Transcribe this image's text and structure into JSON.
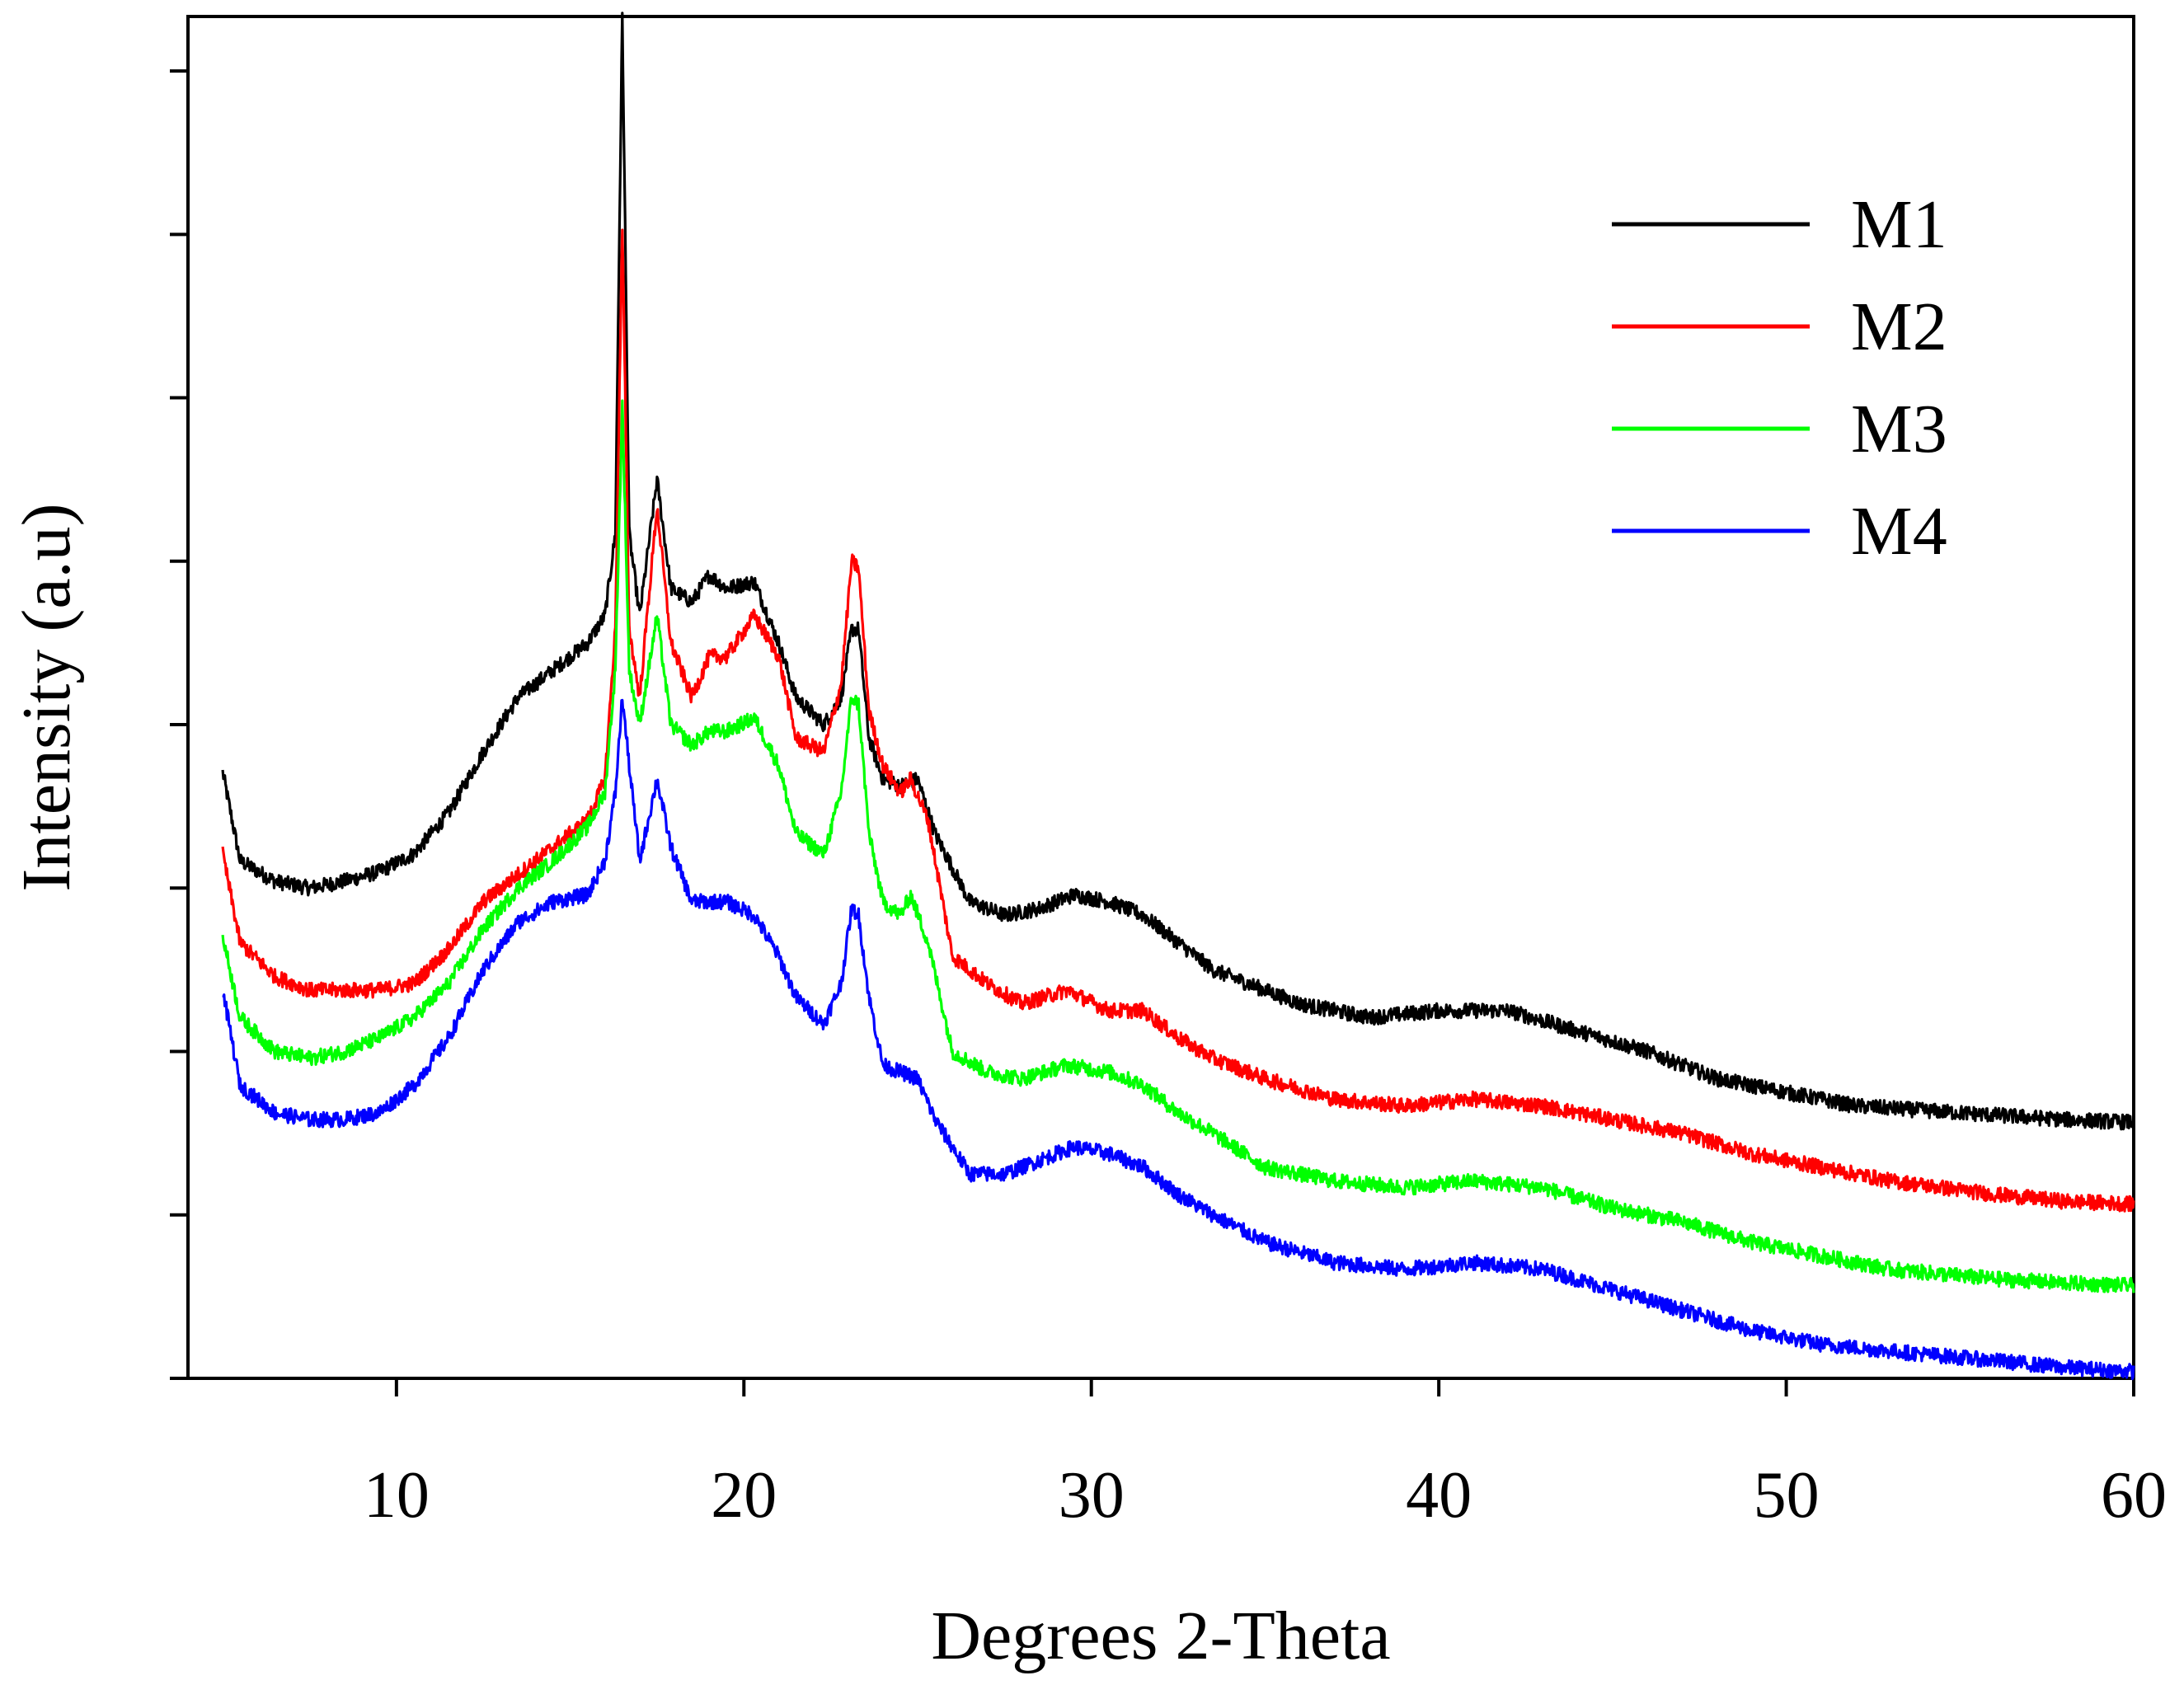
{
  "chart_data": {
    "type": "line",
    "title": "",
    "xlabel": "Degrees 2-Theta",
    "ylabel": "Intensity (a.u)",
    "xlim": [
      4,
      60
    ],
    "ylim": [
      0,
      100
    ],
    "x_ticks": [
      10,
      20,
      30,
      40,
      50,
      60
    ],
    "x_tick_labels": [
      "10",
      "20",
      "30",
      "40",
      "50",
      "60"
    ],
    "y_ticks": [
      0,
      12,
      24,
      36,
      48,
      60,
      72,
      84,
      96
    ],
    "y_tick_labels_shown": false,
    "grid": false,
    "legend_position": "top-right",
    "series": [
      {
        "name": "M1",
        "color": "#000000",
        "points": [
          [
            5,
            44.5
          ],
          [
            5.5,
            38
          ],
          [
            6.5,
            36.5
          ],
          [
            7.5,
            36
          ],
          [
            8.5,
            36.5
          ],
          [
            9.5,
            37.2
          ],
          [
            10.5,
            38.5
          ],
          [
            11.5,
            41.5
          ],
          [
            12.5,
            46
          ],
          [
            13.5,
            50
          ],
          [
            14.5,
            52
          ],
          [
            15.5,
            54
          ],
          [
            16,
            56
          ],
          [
            16.3,
            62
          ],
          [
            16.5,
            100
          ],
          [
            16.7,
            62
          ],
          [
            17,
            56
          ],
          [
            17.5,
            66
          ],
          [
            17.9,
            58
          ],
          [
            18.5,
            57
          ],
          [
            19,
            59
          ],
          [
            19.5,
            58
          ],
          [
            20.3,
            58.5
          ],
          [
            21,
            54
          ],
          [
            21.5,
            50
          ],
          [
            22.3,
            48
          ],
          [
            22.8,
            50
          ],
          [
            23.1,
            55
          ],
          [
            23.3,
            55
          ],
          [
            23.6,
            47
          ],
          [
            24,
            44
          ],
          [
            24.5,
            43.5
          ],
          [
            25,
            44
          ],
          [
            25.5,
            40
          ],
          [
            26.5,
            35
          ],
          [
            27.5,
            34
          ],
          [
            28.5,
            34.5
          ],
          [
            29.5,
            35.5
          ],
          [
            30.5,
            35
          ],
          [
            31.5,
            34
          ],
          [
            32.5,
            32
          ],
          [
            33.5,
            30
          ],
          [
            34.5,
            29
          ],
          [
            36,
            27.5
          ],
          [
            38,
            26.5
          ],
          [
            40,
            27
          ],
          [
            42,
            27
          ],
          [
            44,
            25.5
          ],
          [
            46,
            24
          ],
          [
            48,
            22
          ],
          [
            50,
            21
          ],
          [
            52,
            20
          ],
          [
            55,
            19.5
          ],
          [
            58,
            19
          ],
          [
            60,
            18.8
          ]
        ]
      },
      {
        "name": "M2",
        "color": "#ff0000",
        "points": [
          [
            5,
            38.5
          ],
          [
            5.5,
            32
          ],
          [
            6.5,
            29.5
          ],
          [
            7.5,
            28.5
          ],
          [
            8.5,
            28.5
          ],
          [
            9.5,
            28.5
          ],
          [
            10.5,
            29
          ],
          [
            11.5,
            31.5
          ],
          [
            12.5,
            35
          ],
          [
            13.5,
            37
          ],
          [
            14.5,
            39
          ],
          [
            15.5,
            41
          ],
          [
            16,
            44
          ],
          [
            16.3,
            55
          ],
          [
            16.5,
            84.5
          ],
          [
            16.7,
            55
          ],
          [
            17,
            50
          ],
          [
            17.5,
            64
          ],
          [
            17.9,
            54
          ],
          [
            18.5,
            50
          ],
          [
            19,
            53
          ],
          [
            19.5,
            53
          ],
          [
            20.3,
            56
          ],
          [
            21,
            53
          ],
          [
            21.5,
            47
          ],
          [
            22.3,
            46
          ],
          [
            22.8,
            51
          ],
          [
            23.1,
            60
          ],
          [
            23.3,
            59.5
          ],
          [
            23.6,
            49
          ],
          [
            24,
            45
          ],
          [
            24.5,
            43
          ],
          [
            24.8,
            44
          ],
          [
            25.3,
            41
          ],
          [
            26,
            31
          ],
          [
            27,
            29
          ],
          [
            28,
            27.5
          ],
          [
            29.3,
            28.5
          ],
          [
            30.5,
            27
          ],
          [
            31.5,
            27
          ],
          [
            32.5,
            25
          ],
          [
            33.5,
            23.5
          ],
          [
            35,
            22
          ],
          [
            37,
            20.5
          ],
          [
            39,
            20
          ],
          [
            41,
            20.5
          ],
          [
            43,
            20
          ],
          [
            45,
            19
          ],
          [
            47,
            18
          ],
          [
            49,
            16.5
          ],
          [
            51,
            15.5
          ],
          [
            53,
            14.5
          ],
          [
            56,
            13.5
          ],
          [
            58,
            13
          ],
          [
            60,
            12.8
          ]
        ]
      },
      {
        "name": "M3",
        "color": "#00ff00",
        "points": [
          [
            5,
            32.5
          ],
          [
            5.5,
            26.5
          ],
          [
            6.5,
            24
          ],
          [
            7.5,
            23.5
          ],
          [
            8.5,
            24
          ],
          [
            9.5,
            25
          ],
          [
            10.5,
            26.5
          ],
          [
            11.5,
            29
          ],
          [
            12.5,
            33
          ],
          [
            13.5,
            36
          ],
          [
            14.5,
            38
          ],
          [
            15.5,
            40.5
          ],
          [
            16,
            43
          ],
          [
            16.3,
            52
          ],
          [
            16.5,
            71.5
          ],
          [
            16.7,
            52
          ],
          [
            17,
            48
          ],
          [
            17.5,
            56
          ],
          [
            17.9,
            48
          ],
          [
            18.5,
            46.5
          ],
          [
            19,
            47.5
          ],
          [
            19.5,
            47.5
          ],
          [
            20.3,
            48.5
          ],
          [
            21,
            45
          ],
          [
            21.5,
            40
          ],
          [
            22.3,
            38.5
          ],
          [
            22.8,
            43
          ],
          [
            23.1,
            50
          ],
          [
            23.3,
            49.5
          ],
          [
            23.6,
            40
          ],
          [
            24,
            35
          ],
          [
            24.5,
            34
          ],
          [
            24.8,
            35.5
          ],
          [
            25.3,
            32
          ],
          [
            26,
            24
          ],
          [
            27,
            22.5
          ],
          [
            28,
            22
          ],
          [
            29.3,
            23
          ],
          [
            30.5,
            22.5
          ],
          [
            31.5,
            21.5
          ],
          [
            32.5,
            19.5
          ],
          [
            33.5,
            18
          ],
          [
            35,
            15.5
          ],
          [
            37,
            14.5
          ],
          [
            39,
            14
          ],
          [
            41,
            14.5
          ],
          [
            43,
            14
          ],
          [
            45,
            12.5
          ],
          [
            47,
            11.5
          ],
          [
            49,
            10
          ],
          [
            51,
            9
          ],
          [
            53,
            8
          ],
          [
            56,
            7.3
          ],
          [
            58,
            7
          ],
          [
            60,
            6.8
          ]
        ]
      },
      {
        "name": "M4",
        "color": "#0000ff",
        "points": [
          [
            5,
            28.5
          ],
          [
            5.5,
            21.5
          ],
          [
            6.5,
            19.5
          ],
          [
            7.5,
            19
          ],
          [
            8.5,
            19
          ],
          [
            9.5,
            19.5
          ],
          [
            10.5,
            21.5
          ],
          [
            11.5,
            25
          ],
          [
            12.5,
            30
          ],
          [
            13.5,
            33.5
          ],
          [
            14.5,
            35
          ],
          [
            15.5,
            35.5
          ],
          [
            16,
            38
          ],
          [
            16.3,
            43
          ],
          [
            16.5,
            50
          ],
          [
            16.7,
            45
          ],
          [
            17,
            38
          ],
          [
            17.5,
            44
          ],
          [
            17.9,
            39
          ],
          [
            18.5,
            35
          ],
          [
            19.5,
            35
          ],
          [
            20.3,
            34
          ],
          [
            21,
            31
          ],
          [
            21.5,
            28
          ],
          [
            22.3,
            26
          ],
          [
            22.8,
            29
          ],
          [
            23.1,
            34.5
          ],
          [
            23.3,
            34
          ],
          [
            23.6,
            28
          ],
          [
            24,
            23
          ],
          [
            24.5,
            22.5
          ],
          [
            25,
            22
          ],
          [
            25.5,
            19
          ],
          [
            26.5,
            15
          ],
          [
            27.5,
            15
          ],
          [
            28.5,
            16
          ],
          [
            29.5,
            17
          ],
          [
            30.5,
            16.5
          ],
          [
            31.5,
            15.5
          ],
          [
            32.5,
            13.5
          ],
          [
            33.5,
            12
          ],
          [
            35,
            10
          ],
          [
            37,
            8.5
          ],
          [
            39,
            8
          ],
          [
            41,
            8.5
          ],
          [
            43,
            8
          ],
          [
            45,
            6.5
          ],
          [
            47,
            5
          ],
          [
            49,
            3.5
          ],
          [
            51,
            2.5
          ],
          [
            53,
            2
          ],
          [
            56,
            1.3
          ],
          [
            58,
            0.8
          ],
          [
            60,
            0.5
          ]
        ]
      }
    ]
  }
}
